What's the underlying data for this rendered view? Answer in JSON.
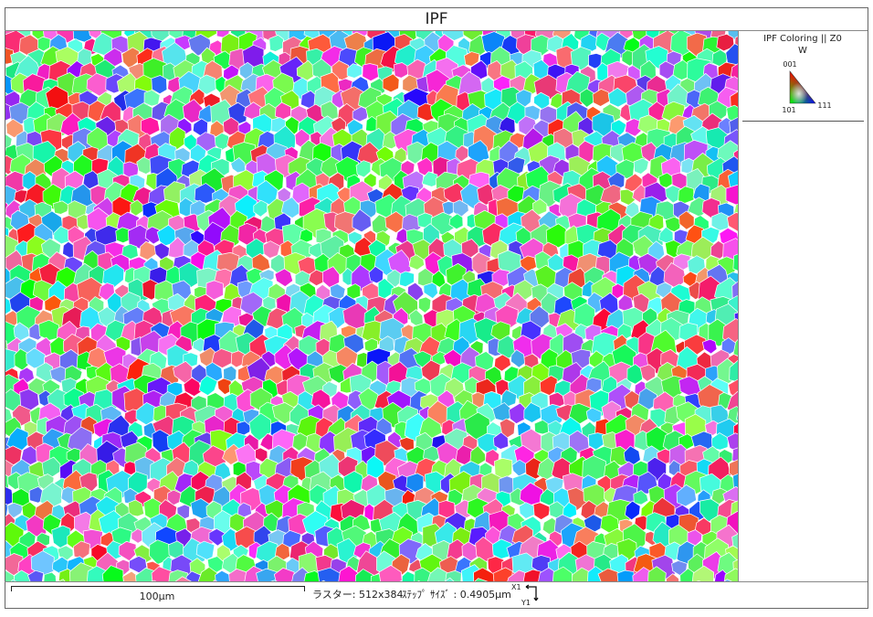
{
  "header": {
    "title": "IPF"
  },
  "legend": {
    "title": "IPF Coloring || Z0",
    "phase": "W",
    "corners": [
      "001",
      "101",
      "111"
    ]
  },
  "footer": {
    "scale_bar": "100μm",
    "raster": "ラスター: 512x384",
    "step_size": "ｽﾃｯﾌﾟ ｻｲｽﾞ : 0.4905μm",
    "axes": [
      "X1",
      "Y1"
    ]
  }
}
